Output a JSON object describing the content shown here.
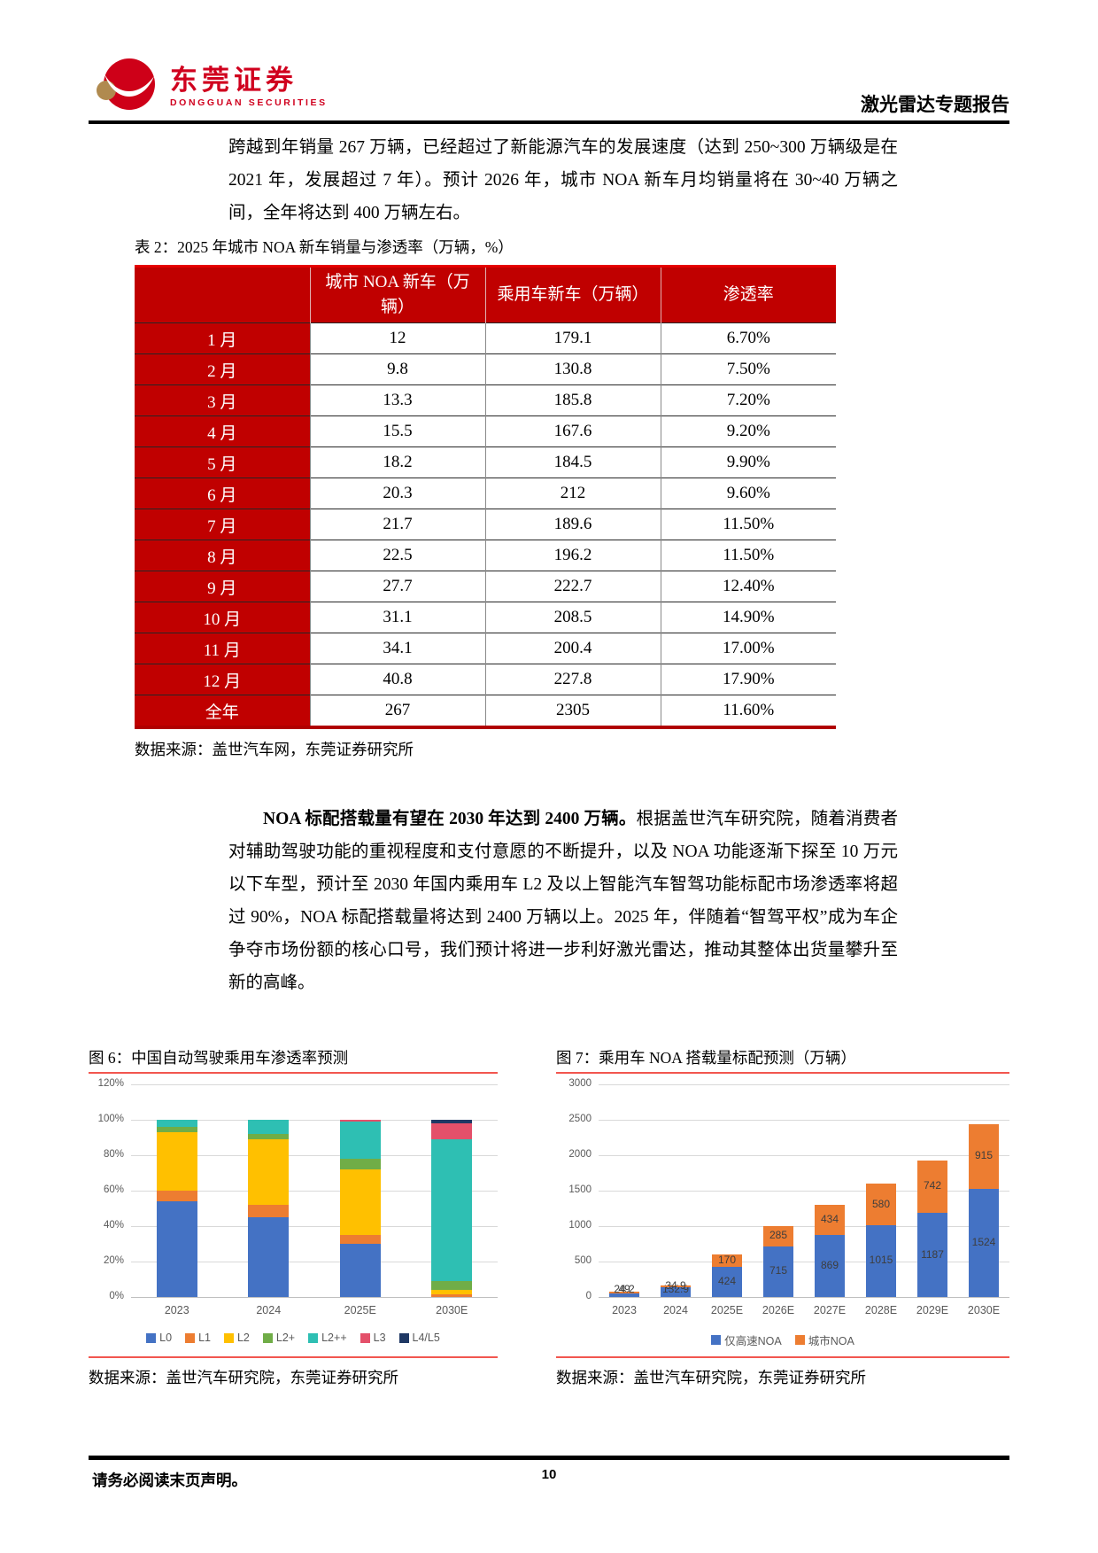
{
  "header": {
    "brand_cn": "东莞证券",
    "brand_en": "DONGGUAN SECURITIES",
    "report_title": "激光雷达专题报告"
  },
  "paragraphs": {
    "intro": "跨越到年销量 267 万辆，已经超过了新能源汽车的发展速度（达到 250~300 万辆级是在 2021 年，发展超过 7 年）。预计 2026 年，城市 NOA 新车月均销量将在 30~40 万辆之间，全年将达到 400 万辆左右。",
    "noa_bold": "NOA 标配搭载量有望在 2030 年达到 2400 万辆。",
    "noa_rest": "根据盖世汽车研究院，随着消费者对辅助驾驶功能的重视程度和支付意愿的不断提升，以及 NOA 功能逐渐下探至 10 万元以下车型，预计至 2030 年国内乘用车 L2 及以上智能汽车智驾功能标配市场渗透率将超过 90%，NOA 标配搭载量将达到 2400 万辆以上。2025 年，伴随着“智驾平权”成为车企争夺市场份额的核心口号，我们预计将进一步利好激光雷达，推动其整体出货量攀升至新的高峰。"
  },
  "table": {
    "caption": "表 2：2025 年城市 NOA 新车销量与渗透率（万辆，%）",
    "headers": [
      "",
      "城市 NOA 新车（万辆）",
      "乘用车新车（万辆）",
      "渗透率"
    ],
    "rows": [
      [
        "1 月",
        "12",
        "179.1",
        "6.70%"
      ],
      [
        "2 月",
        "9.8",
        "130.8",
        "7.50%"
      ],
      [
        "3 月",
        "13.3",
        "185.8",
        "7.20%"
      ],
      [
        "4 月",
        "15.5",
        "167.6",
        "9.20%"
      ],
      [
        "5 月",
        "18.2",
        "184.5",
        "9.90%"
      ],
      [
        "6 月",
        "20.3",
        "212",
        "9.60%"
      ],
      [
        "7 月",
        "21.7",
        "189.6",
        "11.50%"
      ],
      [
        "8 月",
        "22.5",
        "196.2",
        "11.50%"
      ],
      [
        "9 月",
        "27.7",
        "222.7",
        "12.40%"
      ],
      [
        "10 月",
        "31.1",
        "208.5",
        "14.90%"
      ],
      [
        "11 月",
        "34.1",
        "200.4",
        "17.00%"
      ],
      [
        "12 月",
        "40.8",
        "227.8",
        "17.90%"
      ],
      [
        "全年",
        "267",
        "2305",
        "11.60%"
      ]
    ],
    "source": "数据来源：盖世汽车网，东莞证券研究所",
    "header_bg": "#c00000"
  },
  "chart_data": [
    {
      "type": "bar",
      "subtype": "stacked-percent",
      "title": "图 6：中国自动驾驶乘用车渗透率预测",
      "categories": [
        "2023",
        "2024",
        "2025E",
        "2030E"
      ],
      "series": [
        {
          "name": "L0",
          "color": "#4472c4",
          "values": [
            54,
            45,
            30,
            0
          ]
        },
        {
          "name": "L1",
          "color": "#ed7d31",
          "values": [
            6,
            7,
            5,
            1.5
          ]
        },
        {
          "name": "L2",
          "color": "#ffc000",
          "values": [
            33,
            37,
            37,
            2.5
          ]
        },
        {
          "name": "L2+",
          "color": "#70ad47",
          "values": [
            3,
            3,
            6,
            5
          ]
        },
        {
          "name": "L2++",
          "color": "#2ebfb3",
          "values": [
            4,
            8,
            21,
            80
          ]
        },
        {
          "name": "L3",
          "color": "#e4506a",
          "values": [
            0,
            0,
            1,
            9
          ]
        },
        {
          "name": "L4/L5",
          "color": "#1f3864",
          "values": [
            0,
            0,
            0,
            2
          ]
        }
      ],
      "y_ticks": [
        "120%",
        "100%",
        "80%",
        "60%",
        "40%",
        "20%",
        "0%"
      ],
      "ylim": [
        0,
        120
      ],
      "grid": true,
      "legend_position": "bottom",
      "show_labels": false,
      "source": "数据来源：盖世汽车研究院，东莞证券研究所"
    },
    {
      "type": "bar",
      "subtype": "stacked",
      "title": "图 7：乘用车 NOA 搭载量标配预测（万辆）",
      "categories": [
        "2023",
        "2024",
        "2025E",
        "2026E",
        "2027E",
        "2028E",
        "2029E",
        "2030E"
      ],
      "series": [
        {
          "name": "仅高速NOA",
          "color": "#4472c4",
          "values": [
            49,
            132.9,
            424,
            715,
            869,
            1015,
            1187,
            1524
          ]
        },
        {
          "name": "城市NOA",
          "color": "#ed7d31",
          "values": [
            24.2,
            34.9,
            170,
            285,
            434,
            580,
            742,
            915
          ]
        }
      ],
      "y_ticks": [
        "3000",
        "2500",
        "2000",
        "1500",
        "1000",
        "500",
        "0"
      ],
      "ylim": [
        0,
        3000
      ],
      "grid": true,
      "legend_position": "bottom",
      "show_labels": true,
      "source": "数据来源：盖世汽车研究院，东莞证券研究所"
    }
  ],
  "footer": {
    "disclaimer": "请务必阅读末页声明。",
    "page_number": "10"
  }
}
